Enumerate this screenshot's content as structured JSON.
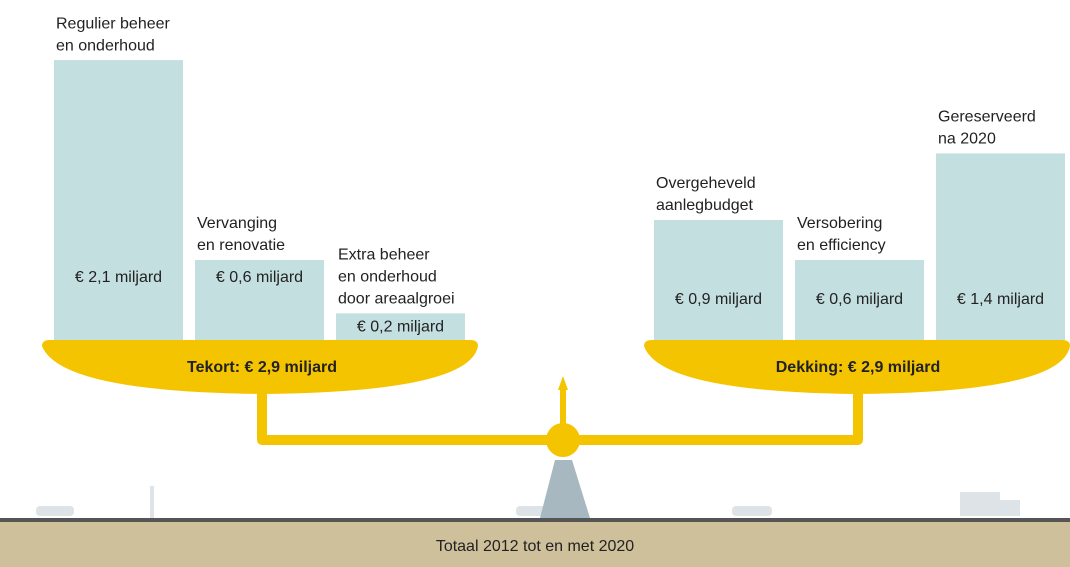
{
  "left": {
    "total": "Tekort: € 2,9 miljard",
    "items": [
      {
        "label": [
          "Regulier beheer",
          "en onderhoud"
        ],
        "value": 2.1,
        "value_label": "€ 2,1 miljard"
      },
      {
        "label": [
          "Vervanging",
          "en renovatie"
        ],
        "value": 0.6,
        "value_label": "€ 0,6 miljard"
      },
      {
        "label": [
          "Extra beheer",
          "en onderhoud",
          "door areaalgroei"
        ],
        "value": 0.2,
        "value_label": "€ 0,2 miljard"
      }
    ]
  },
  "right": {
    "total": "Dekking: € 2,9 miljard",
    "items": [
      {
        "label": [
          "Overgeheveld",
          "aanlegbudget"
        ],
        "value": 0.9,
        "value_label": "€ 0,9 miljard"
      },
      {
        "label": [
          "Versobering",
          "en efficiency"
        ],
        "value": 0.6,
        "value_label": "€ 0,6 miljard"
      },
      {
        "label": [
          "Gereserveerd",
          "na 2020"
        ],
        "value": 1.4,
        "value_label": "€ 1,4 miljard"
      }
    ]
  },
  "footer": "Totaal 2012 tot en met 2020"
}
